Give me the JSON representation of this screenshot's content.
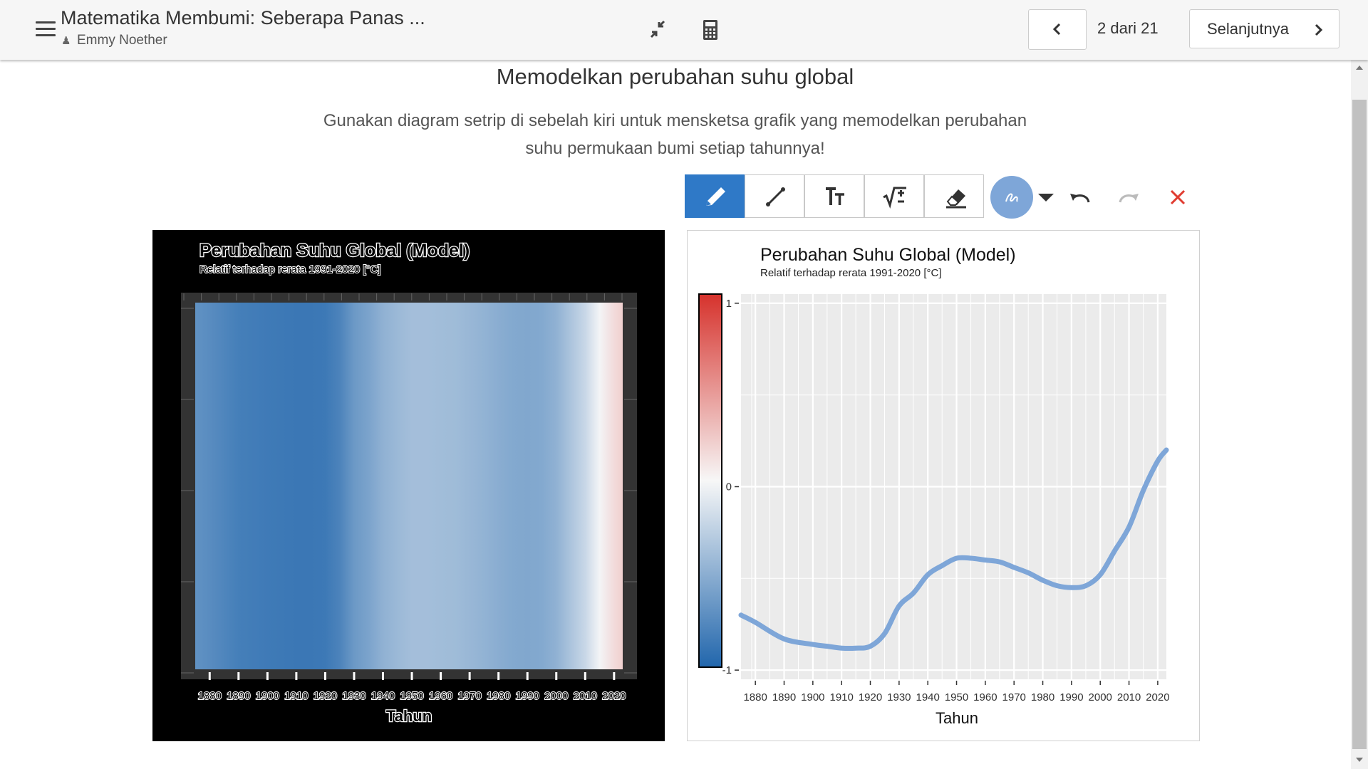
{
  "header": {
    "activity_title": "Matematika Membumi: Seberapa Panas ...",
    "author": "Emmy Noether",
    "author_icon": "user-icon",
    "menu_icon": "hamburger-menu-icon",
    "compress_icon": "collapse-arrows-icon",
    "calculator_icon": "calculator-icon"
  },
  "navigation": {
    "prev_icon": "chevron-left-icon",
    "page_indicator": "2 dari 21",
    "next_label": "Selanjutnya",
    "next_icon": "chevron-right-icon"
  },
  "content": {
    "heading": "Memodelkan perubahan suhu global",
    "instruction": "Gunakan diagram setrip di sebelah kiri untuk mensketsa grafik yang memodelkan perubahan suhu permukaan bumi setiap tahunnya!"
  },
  "toolbar": {
    "tools": [
      "pencil-icon",
      "line-icon",
      "text-icon",
      "math-icon",
      "eraser-icon"
    ],
    "active_tool": "pencil-icon",
    "color_picker_icon": "color-picker-icon",
    "dropdown_icon": "caret-down-icon",
    "undo_icon": "undo-icon",
    "redo_icon": "redo-icon",
    "clear_icon": "clear-x-icon",
    "accent_color": "#2f79c7",
    "clear_color": "#e03c31"
  },
  "chart_data": [
    {
      "type": "heatmap",
      "title": "Perubahan Suhu Global (Model)",
      "subtitle": "Relatif terhadap rerata 1991-2020 [°C]",
      "xlabel": "Tahun",
      "x_ticks": [
        1880,
        1890,
        1900,
        1910,
        1920,
        1930,
        1940,
        1950,
        1960,
        1970,
        1980,
        1990,
        2000,
        2010,
        2020
      ],
      "xlim": [
        1875,
        2023
      ],
      "color_scale": {
        "min": -1,
        "max": 1,
        "low": "#2166ac",
        "mid": "#f7f7f7",
        "high": "#d6322c"
      },
      "background": "#000000",
      "x": [
        1875,
        1880,
        1890,
        1900,
        1905,
        1910,
        1915,
        1920,
        1925,
        1930,
        1935,
        1940,
        1945,
        1950,
        1955,
        1960,
        1965,
        1970,
        1975,
        1980,
        1985,
        1990,
        1995,
        2000,
        2005,
        2010,
        2015,
        2020,
        2023
      ],
      "values": [
        -0.7,
        -0.74,
        -0.83,
        -0.86,
        -0.87,
        -0.88,
        -0.88,
        -0.87,
        -0.8,
        -0.65,
        -0.58,
        -0.48,
        -0.43,
        -0.39,
        -0.39,
        -0.4,
        -0.41,
        -0.44,
        -0.47,
        -0.51,
        -0.54,
        -0.55,
        -0.54,
        -0.48,
        -0.35,
        -0.22,
        -0.02,
        0.14,
        0.2
      ]
    },
    {
      "type": "line",
      "title": "Perubahan Suhu Global (Model)",
      "subtitle": "Relatif terhadap rerata 1991-2020 [°C]",
      "xlabel": "Tahun",
      "x_ticks": [
        1880,
        1890,
        1900,
        1910,
        1920,
        1930,
        1940,
        1950,
        1960,
        1970,
        1980,
        1990,
        2000,
        2010,
        2020
      ],
      "y_ticks": [
        -1,
        0,
        1
      ],
      "xlim": [
        1875,
        2023
      ],
      "ylim": [
        -1.05,
        1.05
      ],
      "grid": true,
      "legend": "colorbar-left",
      "line_color": "#7ea6d8",
      "x": [
        1875,
        1880,
        1890,
        1900,
        1905,
        1910,
        1915,
        1920,
        1925,
        1930,
        1935,
        1940,
        1945,
        1950,
        1955,
        1960,
        1965,
        1970,
        1975,
        1980,
        1985,
        1990,
        1995,
        2000,
        2005,
        2010,
        2015,
        2020,
        2023
      ],
      "values": [
        -0.7,
        -0.74,
        -0.83,
        -0.86,
        -0.87,
        -0.88,
        -0.88,
        -0.87,
        -0.8,
        -0.65,
        -0.58,
        -0.48,
        -0.43,
        -0.39,
        -0.39,
        -0.4,
        -0.41,
        -0.44,
        -0.47,
        -0.51,
        -0.54,
        -0.55,
        -0.54,
        -0.48,
        -0.35,
        -0.22,
        -0.02,
        0.14,
        0.2
      ]
    }
  ]
}
